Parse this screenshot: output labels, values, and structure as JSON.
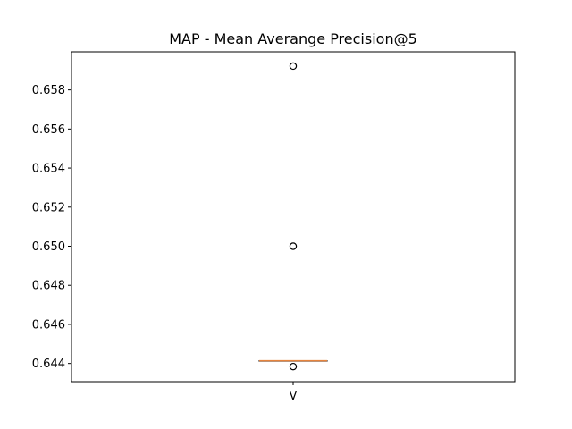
{
  "chart_data": {
    "type": "box",
    "title": "MAP - Mean Averange Precision@5",
    "xlabel": "",
    "ylabel": "",
    "ylim": [
      0.64307,
      0.65995
    ],
    "yticks": [
      "0.644",
      "0.646",
      "0.648",
      "0.650",
      "0.652",
      "0.654",
      "0.656",
      "0.658"
    ],
    "categories": [
      "V"
    ],
    "series": [
      {
        "category": "V",
        "q1": 0.64414,
        "median": 0.64414,
        "q3": 0.64414,
        "whisker_low": 0.64414,
        "whisker_high": 0.64414,
        "outliers": [
          0.65922,
          0.65,
          0.64384
        ]
      }
    ],
    "grid": false,
    "colors": {
      "median": "#e6833c",
      "box": "#000000",
      "outlier": "#000000"
    }
  }
}
